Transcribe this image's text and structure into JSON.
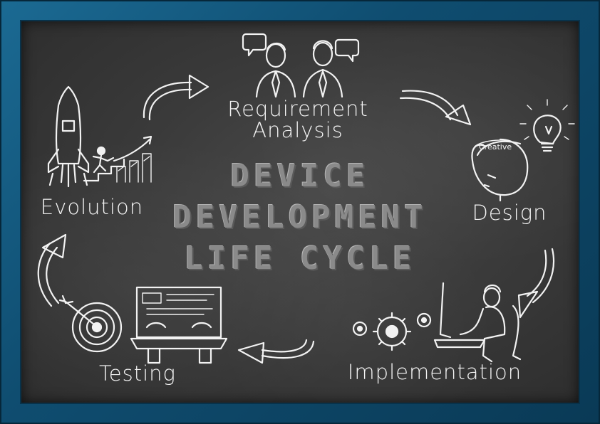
{
  "title_lines": [
    "DEVICE",
    "DEVELOPMENT",
    "LIFE CYCLE"
  ],
  "stages": {
    "requirement": [
      "Requirement",
      "Analysis"
    ],
    "design": "Design",
    "implementation": "Implementation",
    "testing": "Testing",
    "evolution": "Evolution"
  },
  "design_sketch_text": "Creative",
  "colors": {
    "frame": "#0f4d70",
    "board": "#3a3a3a",
    "chalk": "#f2f2f2",
    "title": "#8a8a8a"
  }
}
